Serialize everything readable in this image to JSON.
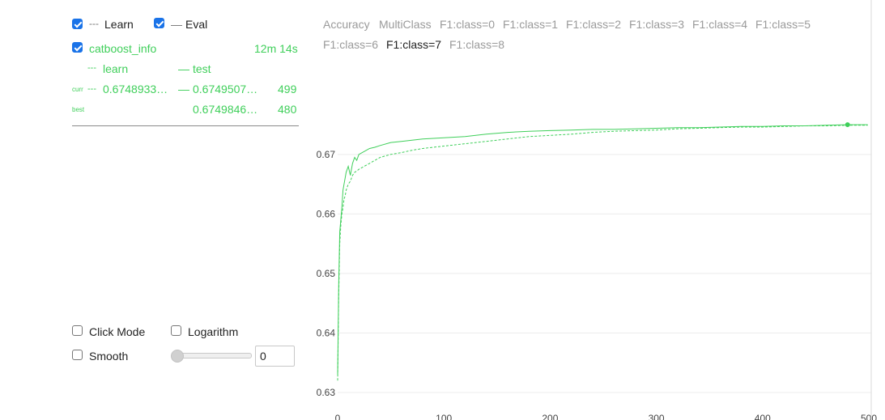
{
  "legend": {
    "learn_label": "Learn",
    "learn_marker": "---",
    "eval_label": "Eval",
    "eval_marker": "—"
  },
  "run": {
    "name": "catboost_info",
    "elapsed": "12m 14s",
    "col_learn": "learn",
    "col_learn_marker": "---",
    "col_test": "test",
    "col_test_marker": "—",
    "curr_label": "curr",
    "curr_learn": "0.6748933…",
    "curr_learn_marker": "---",
    "curr_test": "0.6749507…",
    "curr_test_marker": "—",
    "curr_iter": "499",
    "best_label": "best",
    "best_test": "0.6749846…",
    "best_iter": "480"
  },
  "controls": {
    "click_mode_label": "Click Mode",
    "logarithm_label": "Logarithm",
    "smooth_label": "Smooth",
    "smooth_value": "0"
  },
  "metrics": [
    {
      "label": "Accuracy",
      "active": false
    },
    {
      "label": "MultiClass",
      "active": false
    },
    {
      "label": "F1:class=0",
      "active": false
    },
    {
      "label": "F1:class=1",
      "active": false
    },
    {
      "label": "F1:class=2",
      "active": false
    },
    {
      "label": "F1:class=3",
      "active": false
    },
    {
      "label": "F1:class=4",
      "active": false
    },
    {
      "label": "F1:class=5",
      "active": false
    },
    {
      "label": "F1:class=6",
      "active": false
    },
    {
      "label": "F1:class=7",
      "active": true
    },
    {
      "label": "F1:class=8",
      "active": false
    }
  ],
  "colors": {
    "series": "#3fcf5a",
    "checkbox": "#1a73e8",
    "inactive_metric": "#9a9a9a"
  },
  "chart_data": {
    "type": "line",
    "title": "",
    "xlabel": "",
    "ylabel": "",
    "xlim": [
      0,
      500
    ],
    "ylim": [
      0.63,
      0.678
    ],
    "x_ticks": [
      "0",
      "100",
      "200",
      "300",
      "400",
      "500"
    ],
    "y_ticks": [
      "0.63",
      "0.64",
      "0.65",
      "0.66",
      "0.67"
    ],
    "grid": "horizontal",
    "series": [
      {
        "name": "test",
        "style": "solid",
        "x": [
          0,
          1,
          2,
          3,
          4,
          5,
          6,
          7,
          8,
          10,
          12,
          14,
          16,
          18,
          20,
          25,
          30,
          35,
          40,
          50,
          60,
          70,
          80,
          100,
          120,
          140,
          160,
          180,
          200,
          220,
          240,
          260,
          280,
          300,
          320,
          340,
          360,
          380,
          400,
          420,
          440,
          460,
          480,
          499
        ],
        "y": [
          0.633,
          0.648,
          0.657,
          0.659,
          0.661,
          0.664,
          0.665,
          0.666,
          0.667,
          0.668,
          0.6665,
          0.6685,
          0.6695,
          0.669,
          0.67,
          0.6705,
          0.671,
          0.6712,
          0.6715,
          0.672,
          0.6722,
          0.6724,
          0.6726,
          0.6728,
          0.673,
          0.6734,
          0.6737,
          0.6739,
          0.674,
          0.6741,
          0.6742,
          0.6742,
          0.6743,
          0.6744,
          0.6745,
          0.6745,
          0.6746,
          0.6747,
          0.6747,
          0.6748,
          0.6748,
          0.6749,
          0.675,
          0.675
        ]
      },
      {
        "name": "learn",
        "style": "dashed",
        "x": [
          0,
          1,
          2,
          3,
          4,
          5,
          6,
          7,
          8,
          10,
          12,
          14,
          16,
          18,
          20,
          25,
          30,
          35,
          40,
          50,
          60,
          70,
          80,
          100,
          120,
          140,
          160,
          180,
          200,
          220,
          240,
          260,
          280,
          300,
          320,
          340,
          360,
          380,
          400,
          420,
          440,
          460,
          480,
          499
        ],
        "y": [
          0.632,
          0.646,
          0.655,
          0.658,
          0.66,
          0.661,
          0.6625,
          0.663,
          0.664,
          0.665,
          0.6655,
          0.6665,
          0.667,
          0.6672,
          0.6675,
          0.668,
          0.6685,
          0.669,
          0.6695,
          0.67,
          0.6703,
          0.6707,
          0.671,
          0.6714,
          0.6718,
          0.6722,
          0.6726,
          0.673,
          0.6732,
          0.6734,
          0.6737,
          0.6739,
          0.674,
          0.6741,
          0.6743,
          0.6744,
          0.6745,
          0.6746,
          0.6746,
          0.6747,
          0.6748,
          0.6748,
          0.6749,
          0.6749
        ]
      }
    ],
    "best_point": {
      "x": 480,
      "y": 0.675
    }
  }
}
